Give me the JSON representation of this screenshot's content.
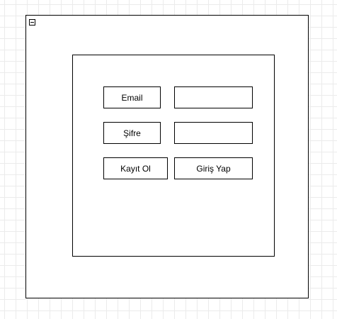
{
  "form": {
    "email_label": "Email",
    "email_value": "",
    "password_label": "Şifre",
    "password_value": "",
    "register_label": "Kayıt Ol",
    "login_label": "Giriş Yap"
  }
}
